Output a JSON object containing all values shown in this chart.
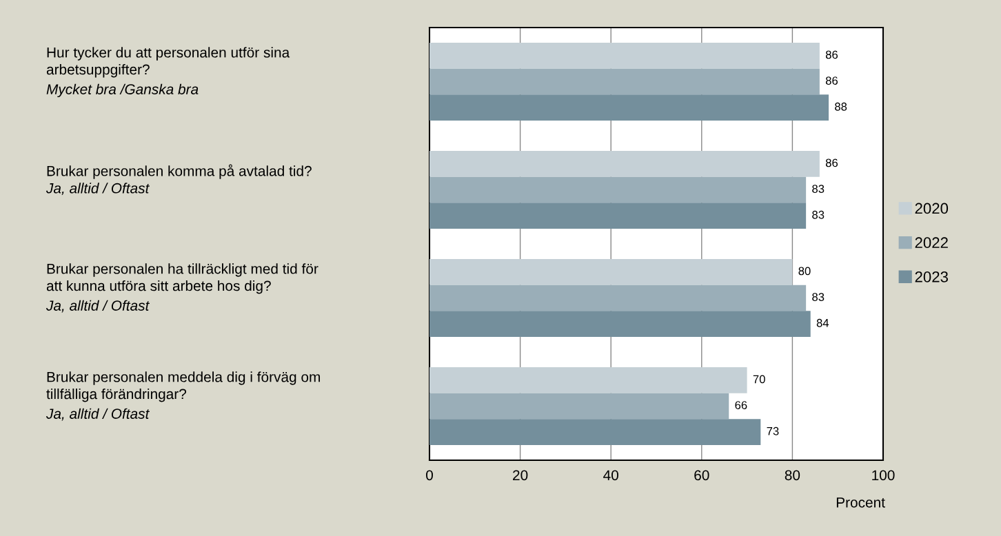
{
  "chart_data": {
    "type": "bar",
    "orientation": "horizontal",
    "categories": [
      "Hur tycker du att personalen utför sina\narbetsuppgifter?\nMycket bra /Ganska bra",
      "Brukar personalen komma på avtalad tid?\nJa, alltid / Oftast",
      "Brukar personalen ha tillräckligt med tid för\natt kunna utföra sitt arbete hos dig?\nJa, alltid / Oftast",
      "Brukar personalen meddela dig i förväg om\ntillfälliga förändringar?\nJa, alltid / Oftast"
    ],
    "series": [
      {
        "name": "2020",
        "color": "#c5d0d6",
        "values": [
          86,
          86,
          80,
          70
        ]
      },
      {
        "name": "2022",
        "color": "#9aaeb8",
        "values": [
          86,
          83,
          83,
          66
        ]
      },
      {
        "name": "2023",
        "color": "#748f9c",
        "values": [
          88,
          83,
          84,
          73
        ]
      }
    ],
    "xlabel": "Procent",
    "xlim": [
      0,
      100
    ],
    "xticks": [
      0,
      20,
      40,
      60,
      80,
      100
    ],
    "grid": "x",
    "legend": "right",
    "data_labels": true
  }
}
